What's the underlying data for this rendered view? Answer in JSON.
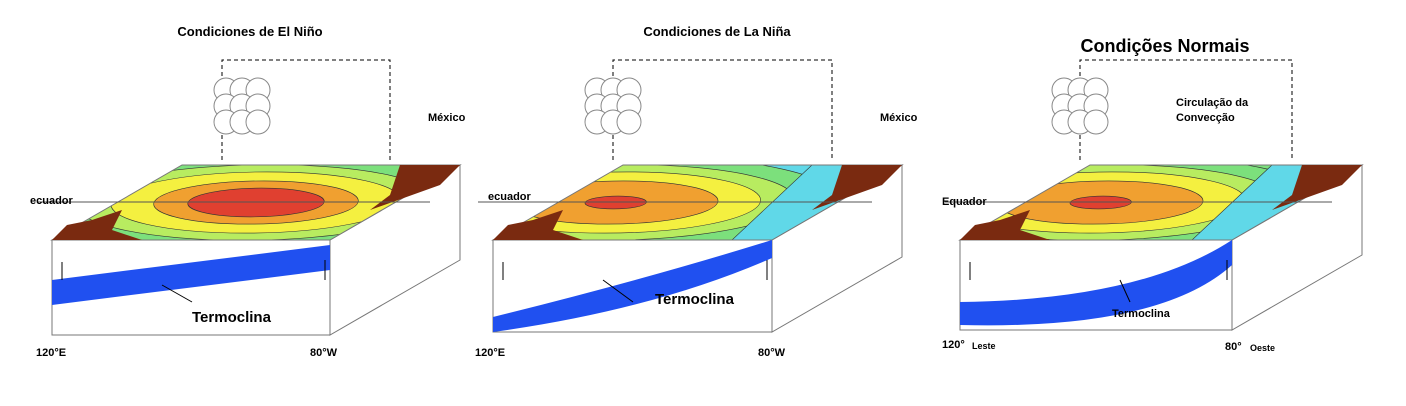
{
  "panels": [
    {
      "title": "Condiciones de El Niño",
      "country": "México",
      "equator": "ecuador",
      "thermocline": "Termoclina",
      "west_lon": "120°E",
      "east_lon": "80°W"
    },
    {
      "title": "Condiciones de La Niña",
      "country": "México",
      "equator": "ecuador",
      "thermocline": "Termoclina",
      "west_lon": "120°E",
      "east_lon": "80°W"
    },
    {
      "title": "Condições Normais",
      "circulation": [
        "Circulação da",
        "Convecção"
      ],
      "equator": "Equador",
      "thermocline": "Termoclina",
      "west_lon": "120°",
      "west_dir": "Leste",
      "east_lon": "80°",
      "east_dir": "Oeste"
    }
  ]
}
